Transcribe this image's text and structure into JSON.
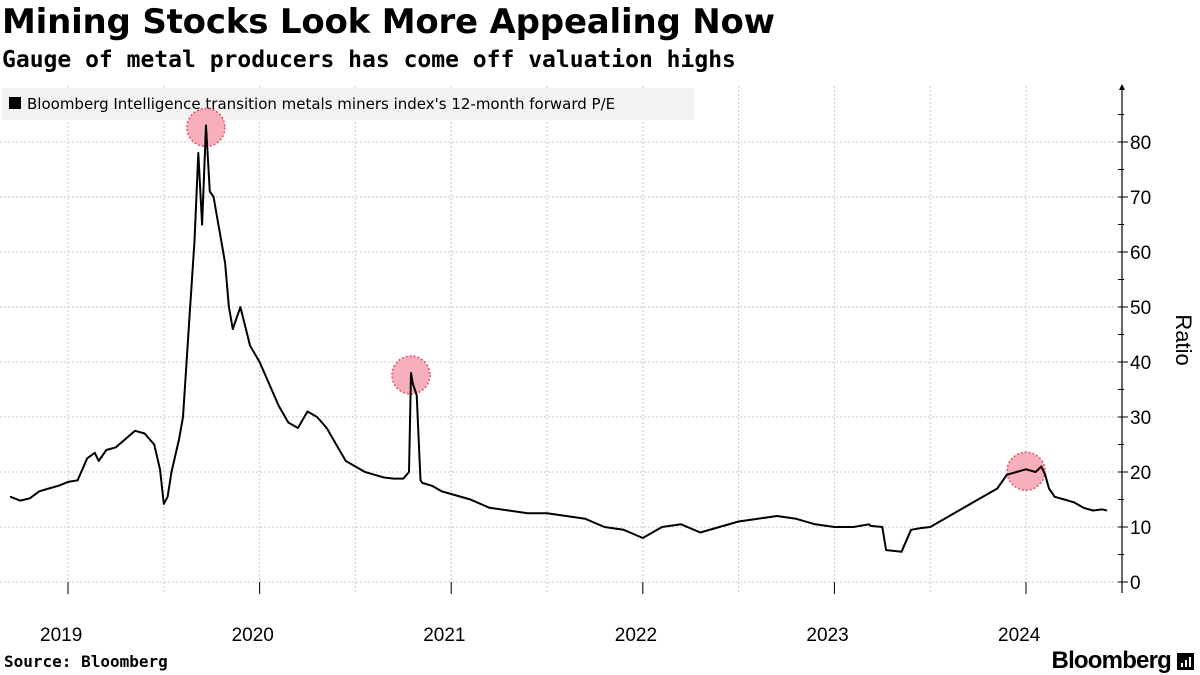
{
  "header": {
    "title": "Mining Stocks Look More Appealing Now",
    "subtitle": "Gauge of metal producers has come off valuation highs"
  },
  "footer": {
    "source": "Source: Bloomberg",
    "brand": "Bloomberg"
  },
  "colors": {
    "line": "#000000",
    "highlight_fill": "#f7a7b5",
    "highlight_stroke": "#e0405a",
    "grid": "#c8c8c8",
    "legend_bg": "#f2f2f2"
  },
  "chart_data": {
    "type": "line",
    "title": "Mining Stocks Look More Appealing Now",
    "subtitle": "Gauge of metal producers has come off valuation highs",
    "legend": [
      "Bloomberg Intelligence transition metals miners index's 12-month forward P/E"
    ],
    "legend_position": "top-left",
    "xlabel": "",
    "ylabel": "Ratio",
    "y_axis_side": "right",
    "ylim": [
      0,
      90
    ],
    "yticks": [
      0,
      10,
      20,
      30,
      40,
      50,
      60,
      70,
      80
    ],
    "xlim": [
      2018.7,
      2024.75
    ],
    "xticks": [
      2019,
      2020,
      2021,
      2022,
      2023,
      2024
    ],
    "xtick_labels": [
      "2019",
      "2020",
      "2021",
      "2022",
      "2023",
      "2024"
    ],
    "grid": true,
    "series": [
      {
        "name": "Bloomberg Intelligence transition metals miners index's 12-month forward P/E",
        "x": [
          2018.7,
          2018.75,
          2018.8,
          2018.85,
          2018.9,
          2018.95,
          2019.0,
          2019.05,
          2019.1,
          2019.14,
          2019.16,
          2019.2,
          2019.25,
          2019.3,
          2019.35,
          2019.4,
          2019.45,
          2019.48,
          2019.5,
          2019.52,
          2019.54,
          2019.56,
          2019.58,
          2019.6,
          2019.63,
          2019.66,
          2019.68,
          2019.7,
          2019.72,
          2019.74,
          2019.76,
          2019.78,
          2019.8,
          2019.82,
          2019.84,
          2019.86,
          2019.9,
          2019.95,
          2020.0,
          2020.05,
          2020.1,
          2020.15,
          2020.2,
          2020.25,
          2020.3,
          2020.35,
          2020.4,
          2020.45,
          2020.5,
          2020.55,
          2020.6,
          2020.65,
          2020.7,
          2020.75,
          2020.78,
          2020.79,
          2020.8,
          2020.82,
          2020.84,
          2020.85,
          2020.9,
          2020.95,
          2021.0,
          2021.1,
          2021.2,
          2021.3,
          2021.4,
          2021.5,
          2021.6,
          2021.7,
          2021.8,
          2021.9,
          2022.0,
          2022.1,
          2022.2,
          2022.3,
          2022.4,
          2022.5,
          2022.6,
          2022.7,
          2022.8,
          2022.9,
          2023.0,
          2023.1,
          2023.18,
          2023.19,
          2023.25,
          2023.27,
          2023.35,
          2023.4,
          2023.45,
          2023.5,
          2023.6,
          2023.7,
          2023.8,
          2023.85,
          2023.9,
          2023.95,
          2024.0,
          2024.05,
          2024.08,
          2024.1,
          2024.12,
          2024.15,
          2024.2,
          2024.25,
          2024.3,
          2024.35,
          2024.4,
          2024.42
        ],
        "y": [
          15.5,
          14.8,
          15.2,
          16.5,
          17.0,
          17.5,
          18.2,
          18.5,
          22.5,
          23.5,
          22.0,
          24.0,
          24.5,
          26.0,
          27.5,
          27.0,
          25.0,
          20.5,
          14.2,
          15.5,
          20.0,
          23.0,
          26.0,
          30.0,
          46.0,
          62.0,
          78.0,
          65.0,
          83.0,
          71.0,
          70.0,
          66.0,
          62.0,
          58.0,
          50.0,
          46.0,
          50.0,
          43.0,
          40.0,
          36.0,
          32.0,
          29.0,
          28.0,
          31.0,
          30.0,
          28.0,
          25.0,
          22.0,
          21.0,
          20.0,
          19.5,
          19.0,
          18.8,
          18.8,
          20.0,
          38.0,
          36.0,
          34.0,
          18.5,
          18.0,
          17.5,
          16.5,
          16.0,
          15.0,
          13.5,
          13.0,
          12.5,
          12.5,
          12.0,
          11.5,
          10.0,
          9.5,
          8.0,
          10.0,
          10.5,
          9.0,
          10.0,
          11.0,
          11.5,
          12.0,
          11.5,
          10.5,
          10.0,
          10.0,
          10.5,
          10.2,
          10.0,
          5.8,
          5.5,
          9.5,
          9.8,
          10.0,
          12.0,
          14.0,
          16.0,
          17.0,
          19.5,
          20.0,
          20.5,
          20.0,
          21.0,
          19.5,
          17.0,
          15.5,
          15.0,
          14.5,
          13.5,
          13.0,
          13.2,
          13.0
        ]
      }
    ],
    "annotations": [
      {
        "type": "highlight-circle",
        "x": 2019.72,
        "y": 83.0
      },
      {
        "type": "highlight-circle",
        "x": 2020.79,
        "y": 38.0
      },
      {
        "type": "highlight-circle",
        "x": 2024.0,
        "y": 20.5
      }
    ]
  }
}
